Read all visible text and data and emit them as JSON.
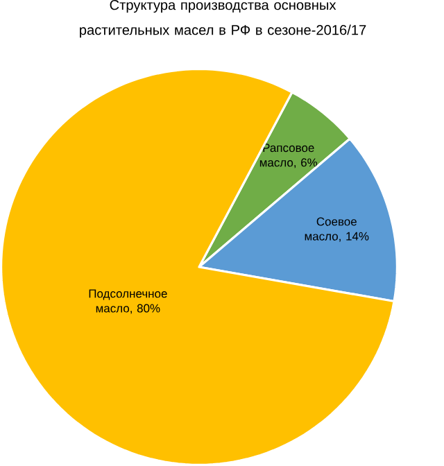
{
  "chart_data": {
    "type": "pie",
    "title": "Структура производства основных растительных масел в РФ в сезоне-2016/17",
    "categories": [
      "Рапсовое масло, 6%",
      "Соевое масло, 14%",
      "Подсолнечное масло, 80%"
    ],
    "values": [
      6,
      14,
      80
    ],
    "colors": [
      "#70ad47",
      "#5b9bd5",
      "#ffc000"
    ]
  }
}
